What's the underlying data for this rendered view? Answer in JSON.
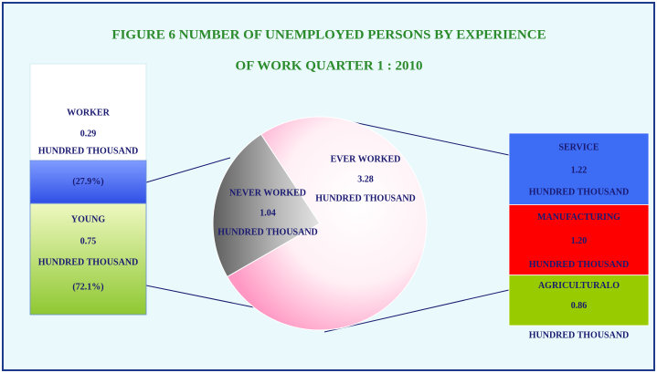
{
  "chart_data": [
    {
      "type": "pie",
      "title": [
        "FIGURE 6  NUMBER OF UNEMPLOYED PERSONS BY EXPERIENCE",
        "OF WORK QUARTER 1 : 2010"
      ],
      "unit": "HUNDRED THOUSAND",
      "categories": [
        "NEVER WORKED",
        "EVER WORKED"
      ],
      "values": [
        1.04,
        3.28
      ],
      "colors": [
        "#9a9a9a",
        "#ffd6e6"
      ]
    },
    {
      "type": "bar",
      "categories": [
        "WORKER",
        "YOUNG"
      ],
      "values": [
        0.29,
        0.75
      ],
      "percents": [
        27.9,
        72.1
      ],
      "percent_labels": [
        "(27.9%)",
        "(72.1%)"
      ],
      "colors": [
        "#3a5cf0",
        "#a8d848"
      ]
    },
    {
      "type": "bar",
      "categories": [
        "SERVICE",
        "MANUFACTURING",
        "AGRICULTURALO"
      ],
      "values": [
        1.22,
        1.2,
        0.86
      ],
      "value_labels": [
        "1.22",
        "1.20",
        "0.86"
      ],
      "colors": [
        "#3d6cf5",
        "#ff0000",
        "#99cc00"
      ]
    }
  ]
}
